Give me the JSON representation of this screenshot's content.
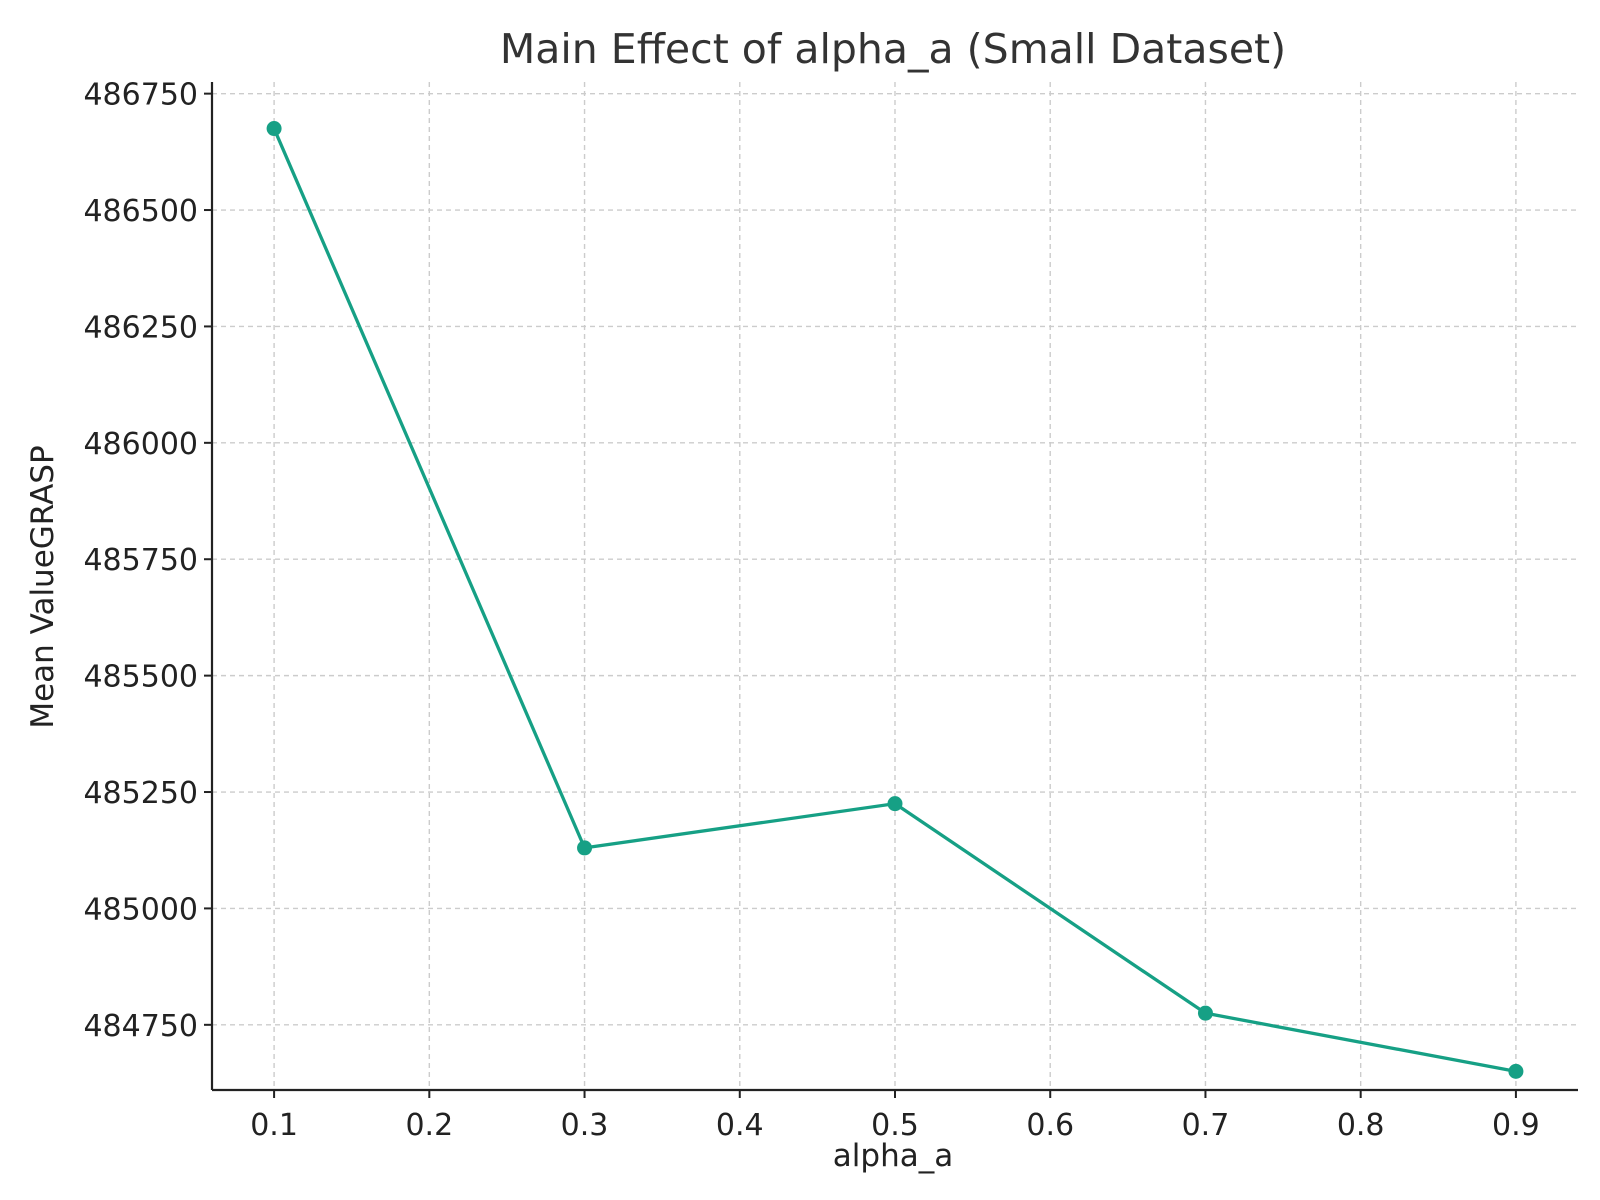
{
  "chart_data": {
    "type": "line",
    "title": "Main Effect of alpha_a (Small Dataset)",
    "xlabel": "alpha_a",
    "ylabel": "Mean ValueGRASP",
    "x": [
      0.1,
      0.3,
      0.5,
      0.7,
      0.9
    ],
    "series": [
      {
        "values": [
          486675,
          485130,
          485225,
          484775,
          484650
        ]
      }
    ],
    "xlim": [
      0.06,
      0.94
    ],
    "ylim": [
      484610,
      486775
    ],
    "xticks": [
      "0.1",
      "0.2",
      "0.3",
      "0.4",
      "0.5",
      "0.6",
      "0.7",
      "0.8",
      "0.9"
    ],
    "xtick_values": [
      0.1,
      0.2,
      0.3,
      0.4,
      0.5,
      0.6,
      0.7,
      0.8,
      0.9
    ],
    "yticks": [
      "484750",
      "485000",
      "485250",
      "485500",
      "485750",
      "486000",
      "486250",
      "486500",
      "486750"
    ],
    "ytick_values": [
      484750,
      485000,
      485250,
      485500,
      485750,
      486000,
      486250,
      486500,
      486750
    ],
    "grid": true,
    "grid_style": "dashed",
    "legend": "none",
    "colors": {
      "line": "#16a085",
      "grid": "#cccccc",
      "axis": "#222222",
      "text": "#222222",
      "title": "#333333"
    }
  }
}
